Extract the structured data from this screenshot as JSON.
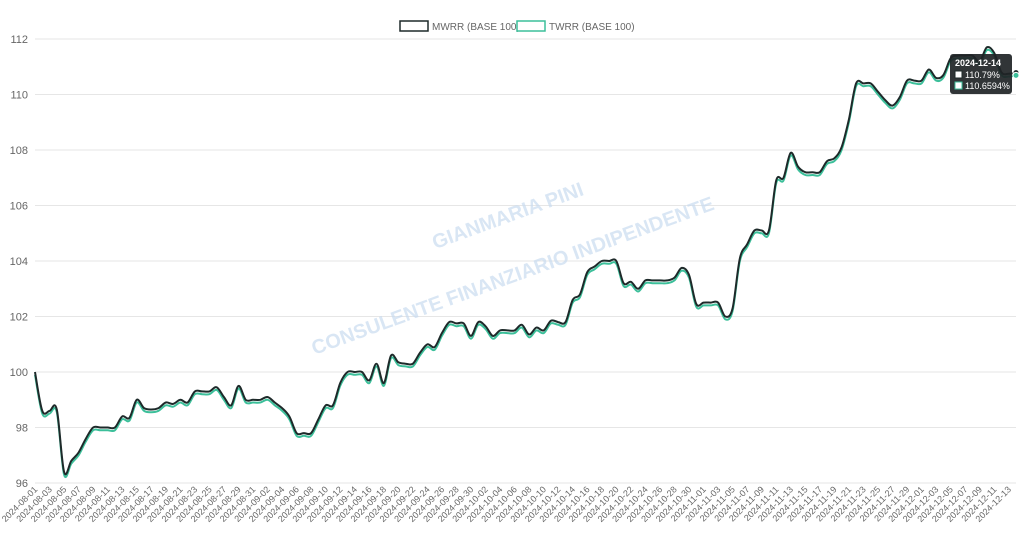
{
  "chart_data": {
    "type": "line",
    "ylim": [
      96,
      112
    ],
    "yticks": [
      96,
      98,
      100,
      102,
      104,
      106,
      108,
      110,
      112
    ],
    "xtick_labels": [
      "2024-08-01",
      "2024-08-03",
      "2024-08-05",
      "2024-08-07",
      "2024-08-09",
      "2024-08-11",
      "2024-08-13",
      "2024-08-15",
      "2024-08-17",
      "2024-08-19",
      "2024-08-21",
      "2024-08-23",
      "2024-08-25",
      "2024-08-27",
      "2024-08-29",
      "2024-08-31",
      "2024-09-02",
      "2024-09-04",
      "2024-09-06",
      "2024-09-08",
      "2024-09-10",
      "2024-09-12",
      "2024-09-14",
      "2024-09-16",
      "2024-09-18",
      "2024-09-20",
      "2024-09-22",
      "2024-09-24",
      "2024-09-26",
      "2024-09-28",
      "2024-09-30",
      "2024-10-02",
      "2024-10-04",
      "2024-10-06",
      "2024-10-08",
      "2024-10-10",
      "2024-10-12",
      "2024-10-14",
      "2024-10-16",
      "2024-10-18",
      "2024-10-20",
      "2024-10-22",
      "2024-10-24",
      "2024-10-26",
      "2024-10-28",
      "2024-10-30",
      "2024-11-01",
      "2024-11-03",
      "2024-11-05",
      "2024-11-07",
      "2024-11-09",
      "2024-11-11",
      "2024-11-13",
      "2024-11-15",
      "2024-11-17",
      "2024-11-19",
      "2024-11-21",
      "2024-11-23",
      "2024-11-25",
      "2024-11-27",
      "2024-11-29",
      "2024-12-01",
      "2024-12-03",
      "2024-12-05",
      "2024-12-07",
      "2024-12-09",
      "2024-12-11",
      "2024-12-13"
    ],
    "grid": true,
    "legend_position": "top-center",
    "series": [
      {
        "name": "MWRR (BASE 100)",
        "color": "#1e2a2a",
        "fill": "#ffffff",
        "offset": 0,
        "points": [
          [
            "2024-08-01",
            100.0
          ],
          [
            "2024-08-02",
            98.6
          ],
          [
            "2024-08-03",
            98.6
          ],
          [
            "2024-08-04",
            98.65
          ],
          [
            "2024-08-05",
            96.4
          ],
          [
            "2024-08-06",
            96.8
          ],
          [
            "2024-08-07",
            97.1
          ],
          [
            "2024-08-08",
            97.6
          ],
          [
            "2024-08-09",
            98.0
          ],
          [
            "2024-08-10",
            98.0
          ],
          [
            "2024-08-11",
            98.0
          ],
          [
            "2024-08-12",
            98.0
          ],
          [
            "2024-08-13",
            98.4
          ],
          [
            "2024-08-14",
            98.35
          ],
          [
            "2024-08-15",
            99.0
          ],
          [
            "2024-08-16",
            98.7
          ],
          [
            "2024-08-17",
            98.65
          ],
          [
            "2024-08-18",
            98.7
          ],
          [
            "2024-08-19",
            98.9
          ],
          [
            "2024-08-20",
            98.85
          ],
          [
            "2024-08-21",
            99.0
          ],
          [
            "2024-08-22",
            98.9
          ],
          [
            "2024-08-23",
            99.3
          ],
          [
            "2024-08-24",
            99.3
          ],
          [
            "2024-08-25",
            99.3
          ],
          [
            "2024-08-26",
            99.45
          ],
          [
            "2024-08-27",
            99.1
          ],
          [
            "2024-08-28",
            98.8
          ],
          [
            "2024-08-29",
            99.5
          ],
          [
            "2024-08-30",
            99.0
          ],
          [
            "2024-08-31",
            99.0
          ],
          [
            "2024-09-01",
            99.0
          ],
          [
            "2024-09-02",
            99.1
          ],
          [
            "2024-09-03",
            98.9
          ],
          [
            "2024-09-04",
            98.7
          ],
          [
            "2024-09-05",
            98.4
          ],
          [
            "2024-09-06",
            97.8
          ],
          [
            "2024-09-07",
            97.8
          ],
          [
            "2024-09-08",
            97.8
          ],
          [
            "2024-09-09",
            98.3
          ],
          [
            "2024-09-10",
            98.8
          ],
          [
            "2024-09-11",
            98.8
          ],
          [
            "2024-09-12",
            99.6
          ],
          [
            "2024-09-13",
            100.0
          ],
          [
            "2024-09-14",
            100.0
          ],
          [
            "2024-09-15",
            100.0
          ],
          [
            "2024-09-16",
            99.7
          ],
          [
            "2024-09-17",
            100.3
          ],
          [
            "2024-09-18",
            99.6
          ],
          [
            "2024-09-19",
            100.6
          ],
          [
            "2024-09-20",
            100.35
          ],
          [
            "2024-09-21",
            100.3
          ],
          [
            "2024-09-22",
            100.3
          ],
          [
            "2024-09-23",
            100.7
          ],
          [
            "2024-09-24",
            101.0
          ],
          [
            "2024-09-25",
            100.9
          ],
          [
            "2024-09-26",
            101.4
          ],
          [
            "2024-09-27",
            101.8
          ],
          [
            "2024-09-28",
            101.75
          ],
          [
            "2024-09-29",
            101.75
          ],
          [
            "2024-09-30",
            101.3
          ],
          [
            "2024-10-01",
            101.8
          ],
          [
            "2024-10-02",
            101.65
          ],
          [
            "2024-10-03",
            101.3
          ],
          [
            "2024-10-04",
            101.5
          ],
          [
            "2024-10-05",
            101.5
          ],
          [
            "2024-10-06",
            101.5
          ],
          [
            "2024-10-07",
            101.7
          ],
          [
            "2024-10-08",
            101.35
          ],
          [
            "2024-10-09",
            101.6
          ],
          [
            "2024-10-10",
            101.5
          ],
          [
            "2024-10-11",
            101.85
          ],
          [
            "2024-10-12",
            101.8
          ],
          [
            "2024-10-13",
            101.8
          ],
          [
            "2024-10-14",
            102.6
          ],
          [
            "2024-10-15",
            102.8
          ],
          [
            "2024-10-16",
            103.6
          ],
          [
            "2024-10-17",
            103.8
          ],
          [
            "2024-10-18",
            104.0
          ],
          [
            "2024-10-19",
            104.0
          ],
          [
            "2024-10-20",
            104.0
          ],
          [
            "2024-10-21",
            103.2
          ],
          [
            "2024-10-22",
            103.25
          ],
          [
            "2024-10-23",
            103.0
          ],
          [
            "2024-10-24",
            103.3
          ],
          [
            "2024-10-25",
            103.3
          ],
          [
            "2024-10-26",
            103.3
          ],
          [
            "2024-10-27",
            103.3
          ],
          [
            "2024-10-28",
            103.4
          ],
          [
            "2024-10-29",
            103.75
          ],
          [
            "2024-10-30",
            103.5
          ],
          [
            "2024-10-31",
            102.45
          ],
          [
            "2024-11-01",
            102.5
          ],
          [
            "2024-11-02",
            102.5
          ],
          [
            "2024-11-03",
            102.5
          ],
          [
            "2024-11-04",
            102.0
          ],
          [
            "2024-11-05",
            102.3
          ],
          [
            "2024-11-06",
            104.1
          ],
          [
            "2024-11-07",
            104.6
          ],
          [
            "2024-11-08",
            105.1
          ],
          [
            "2024-11-09",
            105.1
          ],
          [
            "2024-11-10",
            105.1
          ],
          [
            "2024-11-11",
            106.9
          ],
          [
            "2024-11-12",
            107.0
          ],
          [
            "2024-11-13",
            107.9
          ],
          [
            "2024-11-14",
            107.4
          ],
          [
            "2024-11-15",
            107.2
          ],
          [
            "2024-11-16",
            107.2
          ],
          [
            "2024-11-17",
            107.2
          ],
          [
            "2024-11-18",
            107.6
          ],
          [
            "2024-11-19",
            107.7
          ],
          [
            "2024-11-20",
            108.1
          ],
          [
            "2024-11-21",
            109.1
          ],
          [
            "2024-11-22",
            110.4
          ],
          [
            "2024-11-23",
            110.4
          ],
          [
            "2024-11-24",
            110.4
          ],
          [
            "2024-11-25",
            110.1
          ],
          [
            "2024-11-26",
            109.8
          ],
          [
            "2024-11-27",
            109.6
          ],
          [
            "2024-11-28",
            109.9
          ],
          [
            "2024-11-29",
            110.5
          ],
          [
            "2024-11-30",
            110.5
          ],
          [
            "2024-12-01",
            110.5
          ],
          [
            "2024-12-02",
            110.9
          ],
          [
            "2024-12-03",
            110.6
          ],
          [
            "2024-12-04",
            110.7
          ],
          [
            "2024-12-05",
            111.3
          ],
          [
            "2024-12-06",
            111.4
          ],
          [
            "2024-12-07",
            111.4
          ],
          [
            "2024-12-08",
            111.4
          ],
          [
            "2024-12-09",
            111.2
          ],
          [
            "2024-12-10",
            111.7
          ],
          [
            "2024-12-11",
            111.5
          ],
          [
            "2024-12-12",
            110.8
          ],
          [
            "2024-12-13",
            110.75
          ],
          [
            "2024-12-14",
            110.79
          ]
        ]
      },
      {
        "name": "TWRR (BASE 100)",
        "color": "#3cbf9a",
        "fill": "#ffffff",
        "offset": -0.1,
        "points_note_same_dates_as_mwrr": true
      }
    ],
    "tooltip": {
      "date": "2024-12-14",
      "lines": [
        "110.79%",
        "110.6594%"
      ]
    }
  },
  "watermark": {
    "line1": "GIANMARIA PINI",
    "line2": "CONSULENTE FINANZIARIO INDIPENDENTE"
  }
}
